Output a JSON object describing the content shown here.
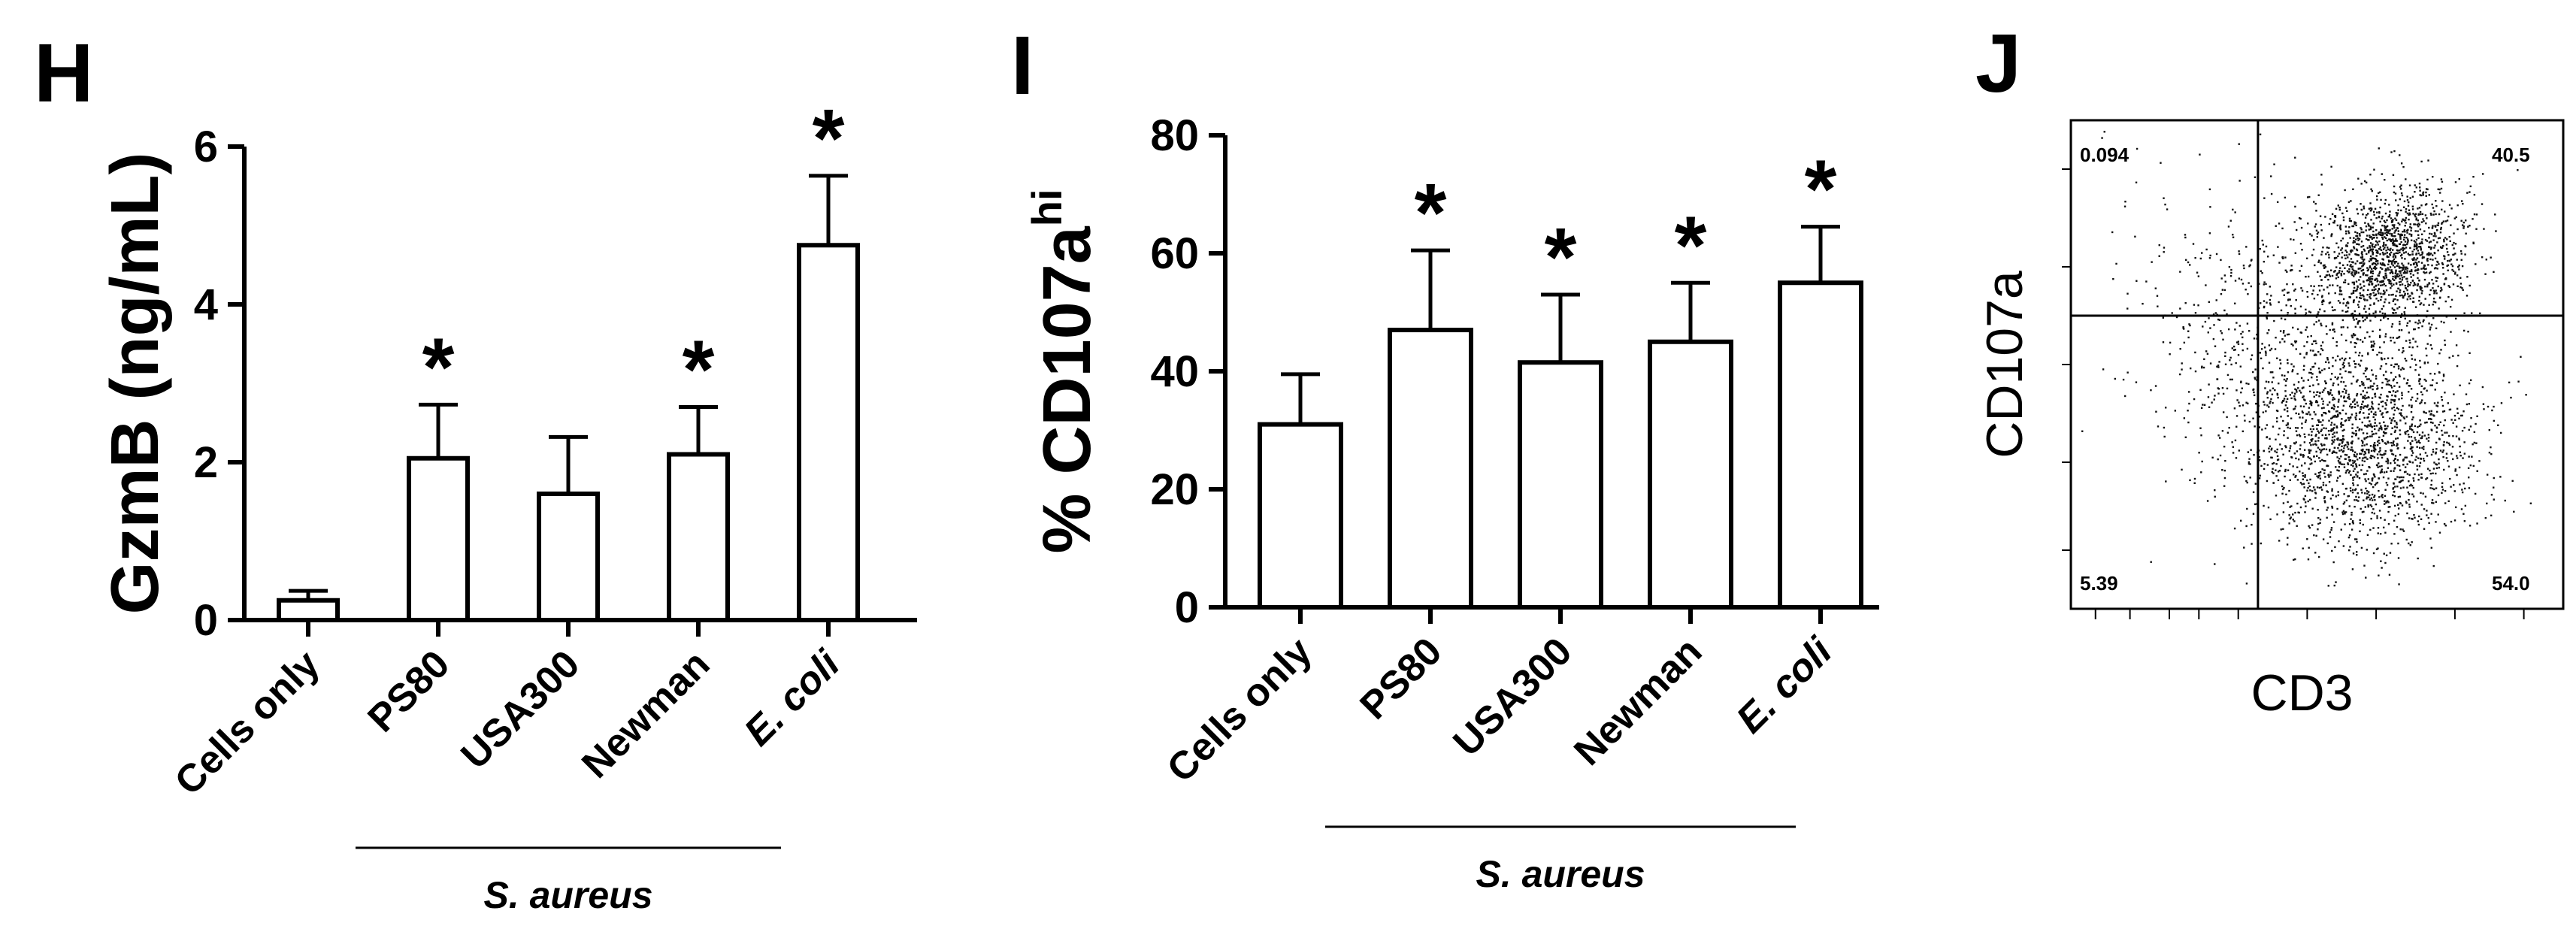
{
  "panels": {
    "h": {
      "letter": "H"
    },
    "i": {
      "letter": "I"
    },
    "j": {
      "letter": "J"
    }
  },
  "chart_data": [
    {
      "type": "bar",
      "panel": "H",
      "categories": [
        "Cells only",
        "PS80",
        "USA300",
        "Newman",
        "E. coli"
      ],
      "values": [
        0.25,
        2.05,
        1.6,
        2.1,
        4.75
      ],
      "errors": [
        0.12,
        0.68,
        0.72,
        0.6,
        0.88
      ],
      "significant": [
        false,
        true,
        false,
        true,
        true
      ],
      "marker": "*",
      "ylabel": "GzmB (ng/mL)",
      "ylim": [
        0,
        6
      ],
      "yticks": [
        "0",
        "2",
        "4",
        "6"
      ],
      "bracket_label": "S. aureus",
      "bracket_span": [
        "PS80",
        "Newman"
      ]
    },
    {
      "type": "bar",
      "panel": "I",
      "categories": [
        "Cells only",
        "PS80",
        "USA300",
        "Newman",
        "E. coli"
      ],
      "values": [
        31,
        47,
        41.5,
        45,
        55
      ],
      "errors": [
        8.5,
        13.5,
        11.5,
        10,
        9.5
      ],
      "significant": [
        false,
        true,
        true,
        true,
        true
      ],
      "marker": "*",
      "ylabel": "% CD107a",
      "ylabel_superscript": "hi",
      "ylim": [
        0,
        80
      ],
      "yticks": [
        "0",
        "20",
        "40",
        "60",
        "80"
      ],
      "bracket_label": "S. aureus",
      "bracket_span": [
        "PS80",
        "Newman"
      ]
    },
    {
      "type": "scatter",
      "panel": "J",
      "xlabel": "CD3",
      "ylabel": "CD107a",
      "quadrants": {
        "top_left": "0.094",
        "top_right": "40.5",
        "bottom_left": "5.39",
        "bottom_right": "54.0"
      },
      "gate": {
        "x": 0.38,
        "y": 0.4
      }
    }
  ]
}
